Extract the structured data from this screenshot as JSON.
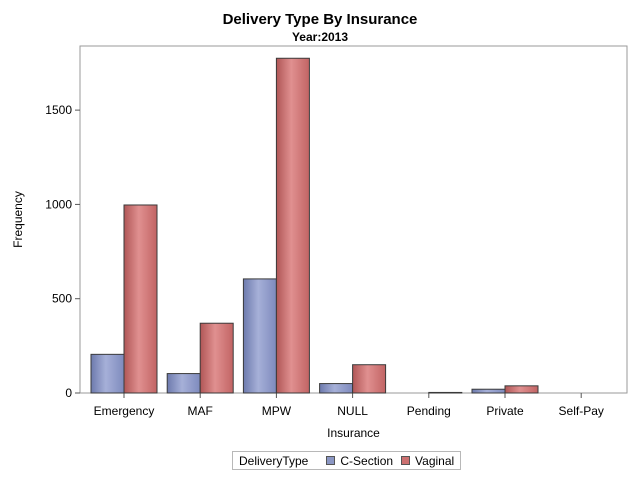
{
  "chart_data": {
    "type": "bar",
    "title": "Delivery Type By Insurance",
    "subtitle": "Year:2013",
    "xlabel": "Insurance",
    "ylabel": "Frequency",
    "categories": [
      "Emergency",
      "MAF",
      "MPW",
      "NULL",
      "Pending",
      "Private",
      "Self-Pay"
    ],
    "series": [
      {
        "name": "C-Section",
        "color": "#8b97c4",
        "values": [
          205,
          103,
          605,
          50,
          0,
          20,
          0
        ]
      },
      {
        "name": "Vaginal",
        "color": "#cc7070",
        "values": [
          997,
          370,
          1775,
          150,
          3,
          38,
          0
        ]
      }
    ],
    "ylim": [
      0,
      1840
    ],
    "yticks": [
      0,
      500,
      1000,
      1500
    ],
    "grid": false,
    "legend": {
      "title": "DeliveryType",
      "position": "bottom"
    }
  }
}
